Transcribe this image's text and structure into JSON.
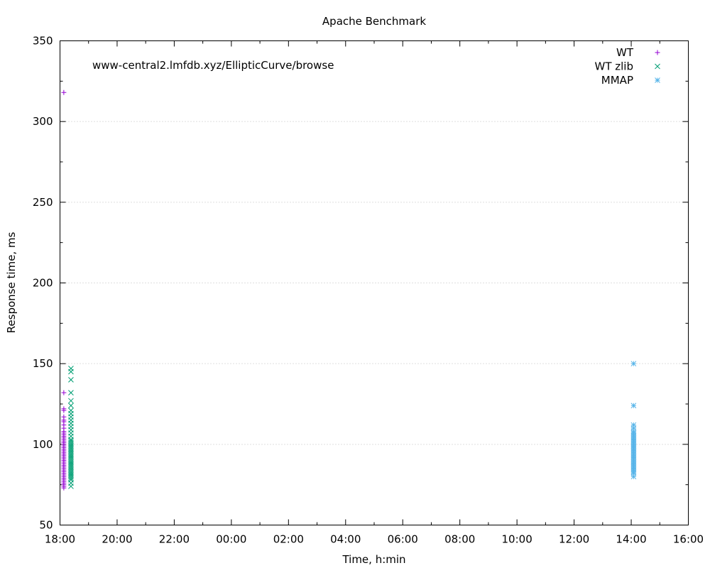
{
  "chart_data": {
    "type": "scatter",
    "title": "Apache Benchmark",
    "subtitle": "www-central2.lmfdb.xyz/EllipticCurve/browse",
    "xlabel": "Time, h:min",
    "ylabel": "Response time, ms",
    "xlim": [
      "18:00",
      "16:00"
    ],
    "ylim": [
      50,
      350
    ],
    "xticks": [
      "18:00",
      "20:00",
      "22:00",
      "00:00",
      "02:00",
      "04:00",
      "06:00",
      "08:00",
      "10:00",
      "12:00",
      "14:00",
      "16:00"
    ],
    "yticks": [
      50,
      100,
      150,
      200,
      250,
      300,
      350
    ],
    "grid": "horizontal dotted",
    "legend_position": "top-right",
    "series": [
      {
        "name": "WT",
        "marker": "plus",
        "color": "#9400d3",
        "x": [
          "18:08",
          "18:08",
          "18:08",
          "18:08",
          "18:08",
          "18:08",
          "18:08",
          "18:08",
          "18:08",
          "18:08",
          "18:08",
          "18:08",
          "18:08",
          "18:08",
          "18:08",
          "18:08",
          "18:08",
          "18:08",
          "18:08",
          "18:08",
          "18:08",
          "18:08",
          "18:08",
          "18:08",
          "18:08",
          "18:08",
          "18:08",
          "18:08",
          "18:08",
          "18:08",
          "18:08",
          "18:08",
          "18:08",
          "18:08",
          "18:08",
          "18:08",
          "18:08",
          "18:08",
          "18:08",
          "18:08",
          "18:08",
          "18:08",
          "18:08",
          "18:08",
          "18:08"
        ],
        "y": [
          318,
          132,
          122,
          121,
          117,
          115,
          114,
          112,
          110,
          108,
          106,
          104,
          102,
          101,
          100,
          99,
          98,
          97,
          96,
          95,
          94,
          93,
          92,
          91,
          90,
          89,
          88,
          87,
          86,
          85,
          84,
          83,
          82,
          81,
          80,
          79,
          78,
          77,
          76,
          75,
          74,
          73,
          105,
          103,
          107
        ]
      },
      {
        "name": "WT zlib",
        "marker": "cross",
        "color": "#009e73",
        "x": [
          "18:23",
          "18:23",
          "18:23",
          "18:23",
          "18:23",
          "18:23",
          "18:23",
          "18:23",
          "18:23",
          "18:23",
          "18:23",
          "18:23",
          "18:23",
          "18:23",
          "18:23",
          "18:23",
          "18:23",
          "18:23",
          "18:23",
          "18:23",
          "18:23",
          "18:23",
          "18:23",
          "18:23",
          "18:23",
          "18:23",
          "18:23",
          "18:23",
          "18:23",
          "18:23",
          "18:23",
          "18:23",
          "18:23",
          "18:23",
          "18:23",
          "18:23",
          "18:23",
          "18:23",
          "18:23",
          "18:23",
          "18:23",
          "18:23",
          "18:23"
        ],
        "y": [
          147,
          145,
          140,
          132,
          127,
          124,
          121,
          119,
          117,
          115,
          113,
          111,
          109,
          107,
          105,
          103,
          102,
          101,
          100,
          99,
          98,
          97,
          96,
          95,
          94,
          93,
          92,
          91,
          90,
          89,
          88,
          87,
          86,
          85,
          84,
          83,
          82,
          81,
          80,
          79,
          78,
          76,
          74
        ]
      },
      {
        "name": "MMAP",
        "marker": "star",
        "color": "#56b4e9",
        "x": [
          "14:05",
          "14:05",
          "14:05",
          "14:05",
          "14:05",
          "14:05",
          "14:05",
          "14:05",
          "14:05",
          "14:05",
          "14:05",
          "14:05",
          "14:05",
          "14:05",
          "14:05",
          "14:05",
          "14:05",
          "14:05",
          "14:05",
          "14:05",
          "14:05",
          "14:05",
          "14:05",
          "14:05",
          "14:05",
          "14:05",
          "14:05",
          "14:05",
          "14:05",
          "14:05",
          "14:05",
          "14:05"
        ],
        "y": [
          150,
          124,
          112,
          110,
          108,
          107,
          106,
          105,
          104,
          103,
          102,
          101,
          100,
          99,
          98,
          97,
          96,
          95,
          94,
          93,
          92,
          91,
          90,
          89,
          88,
          87,
          86,
          85,
          84,
          83,
          82,
          80
        ]
      }
    ]
  }
}
